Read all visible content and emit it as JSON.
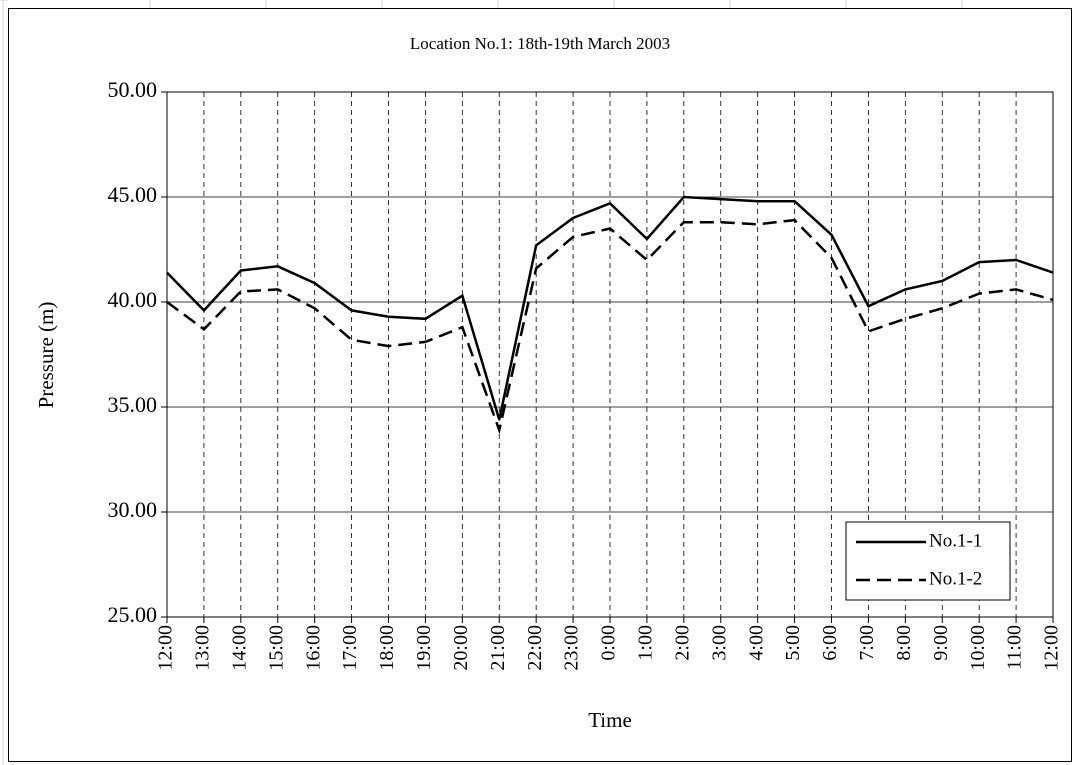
{
  "chart_data": {
    "type": "line",
    "title": "Location No.1: 18th-19th March 2003",
    "x_label": "Time",
    "y_label": "Pressure (m)",
    "categories": [
      "12:00",
      "13:00",
      "14:00",
      "15:00",
      "16:00",
      "17:00",
      "18:00",
      "19:00",
      "20:00",
      "21:00",
      "22:00",
      "23:00",
      "0:00",
      "1:00",
      "2:00",
      "3:00",
      "4:00",
      "5:00",
      "6:00",
      "7:00",
      "8:00",
      "9:00",
      "10:00",
      "11:00",
      "12:00"
    ],
    "series": [
      {
        "name": "No.1-1",
        "color": "#000000",
        "linestyle": "solid",
        "values": [
          41.4,
          39.6,
          41.5,
          41.7,
          40.9,
          39.6,
          39.3,
          39.2,
          40.3,
          34.4,
          42.7,
          44.0,
          44.7,
          43.0,
          45.0,
          44.9,
          44.8,
          44.8,
          43.2,
          39.8,
          40.6,
          41.0,
          41.9,
          42.0,
          41.4
        ]
      },
      {
        "name": "No.1-2",
        "color": "#000000",
        "linestyle": "dashed",
        "values": [
          40.0,
          38.7,
          40.5,
          40.6,
          39.7,
          38.2,
          37.9,
          38.1,
          38.8,
          33.9,
          41.6,
          43.1,
          43.5,
          42.0,
          43.8,
          43.8,
          43.7,
          43.9,
          42.1,
          38.6,
          39.2,
          39.7,
          40.4,
          40.6,
          40.1
        ]
      }
    ],
    "ylim": [
      25,
      50
    ],
    "yticks": [
      {
        "value": 25,
        "label": "25.00"
      },
      {
        "value": 30,
        "label": "30.00"
      },
      {
        "value": 35,
        "label": "35.00"
      },
      {
        "value": 40,
        "label": "40.00"
      },
      {
        "value": 45,
        "label": "45.00"
      },
      {
        "value": 50,
        "label": "50.00"
      }
    ],
    "grid": true,
    "legend": "lower right"
  }
}
